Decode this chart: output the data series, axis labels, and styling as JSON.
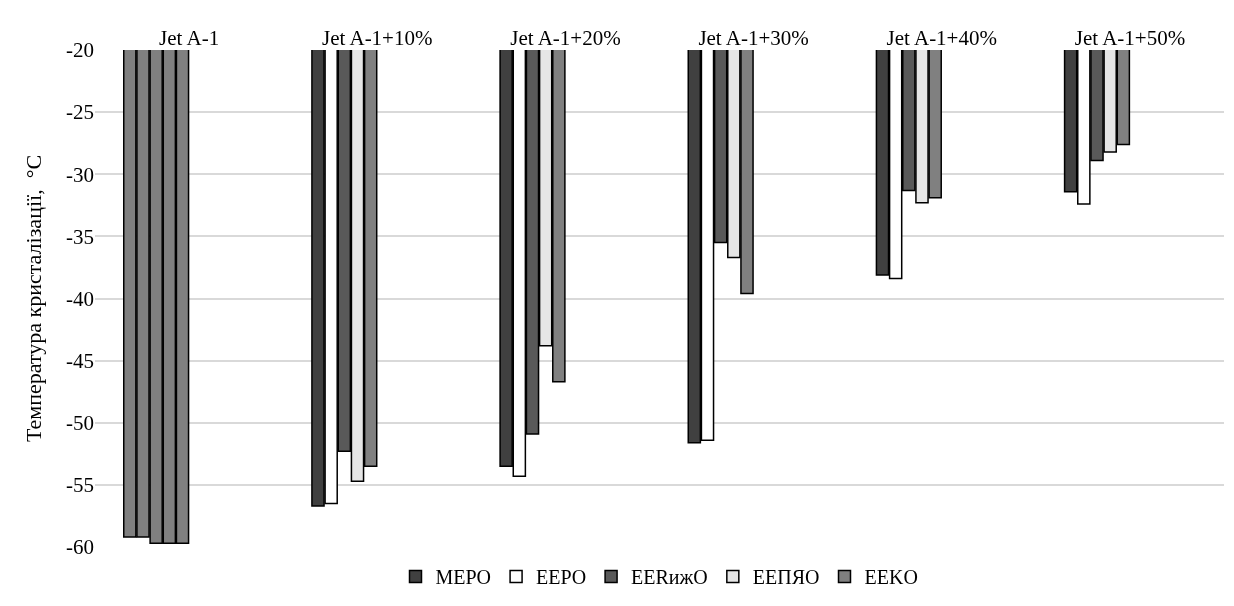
{
  "chart_data": {
    "type": "bar",
    "ylabel": "Температура кристалізації,  °C",
    "categories": [
      "Jet A-1",
      "Jet A-1+10%",
      "Jet A-1+20%",
      "Jet A-1+30%",
      "Jet A-1+40%",
      "Jet A-1+50%"
    ],
    "series": [
      {
        "name": "MEPO",
        "color": "#404040",
        "colors": [
          "#808080",
          "#404040",
          "#404040",
          "#404040",
          "#404040",
          "#404040"
        ],
        "values": [
          -59.2,
          -56.7,
          -53.5,
          -51.6,
          -38.1,
          -31.4
        ]
      },
      {
        "name": "EEPO",
        "color": "#ffffff",
        "colors": [
          "#808080",
          "#ffffff",
          "#ffffff",
          "#ffffff",
          "#ffffff",
          "#ffffff"
        ],
        "values": [
          -59.2,
          -56.5,
          -54.3,
          -51.4,
          -38.4,
          -32.4
        ]
      },
      {
        "name": "EERижO",
        "color": "#595959",
        "colors": [
          "#808080",
          "#595959",
          "#595959",
          "#595959",
          "#595959",
          "#595959"
        ],
        "values": [
          -59.7,
          -52.3,
          -50.9,
          -35.5,
          -31.3,
          -28.9
        ]
      },
      {
        "name": "EEПЯO",
        "color": "#e6e6e6",
        "colors": [
          "#808080",
          "#e6e6e6",
          "#e6e6e6",
          "#e6e6e6",
          "#e6e6e6",
          "#e6e6e6"
        ],
        "values": [
          -59.7,
          -54.7,
          -43.8,
          -36.7,
          -32.3,
          -28.2
        ]
      },
      {
        "name": "EEKO",
        "color": "#808080",
        "colors": [
          "#808080",
          "#808080",
          "#808080",
          "#808080",
          "#808080",
          "#808080"
        ],
        "values": [
          -59.7,
          -53.5,
          -46.7,
          -39.6,
          -31.9,
          -27.6
        ]
      }
    ],
    "ylim": [
      -60,
      -20
    ],
    "yticks": [
      -60,
      -55,
      -50,
      -45,
      -40,
      -35,
      -30,
      -25,
      -20
    ],
    "grid": "y",
    "legend": "bottom"
  }
}
